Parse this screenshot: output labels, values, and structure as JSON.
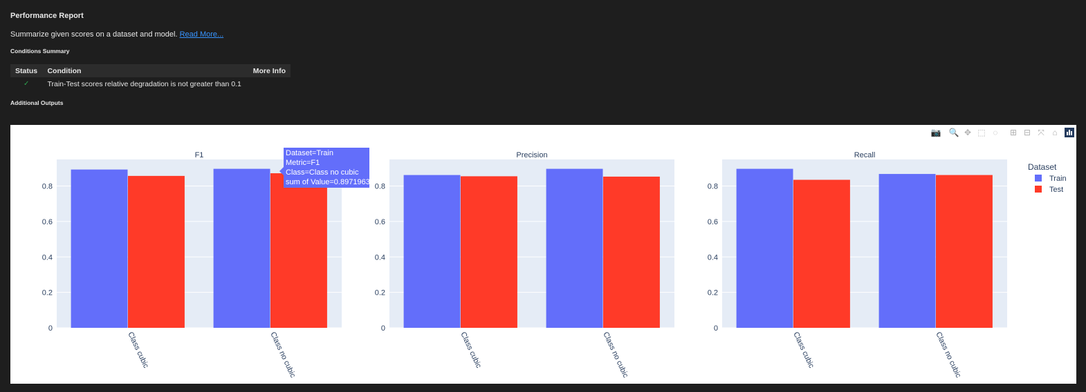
{
  "report": {
    "title": "Performance Report",
    "description": "Summarize given scores on a dataset and model.",
    "read_more": "Read More...",
    "conditions_summary": "Conditions Summary",
    "additional_outputs": "Additional Outputs"
  },
  "conditions_table": {
    "headers": {
      "status": "Status",
      "condition": "Condition",
      "more_info": "More Info"
    },
    "rows": [
      {
        "status": "✓",
        "condition": "Train-Test scores relative degradation is not greater than 0.1",
        "more_info": ""
      }
    ]
  },
  "modebar": {
    "icons": [
      "camera-icon",
      "zoom-icon",
      "pan-icon",
      "box-select-icon",
      "lasso-icon",
      "zoom-in-icon",
      "zoom-out-icon",
      "autoscale-icon",
      "reset-axes-icon",
      "plotly-logo-icon"
    ]
  },
  "tooltip": {
    "line1": "Dataset=Train",
    "line2": "Metric=F1",
    "line3": "Class=Class no cubic",
    "line4": "sum of Value=0.8971963"
  },
  "legend": {
    "title": "Dataset",
    "items": [
      {
        "name": "Train",
        "color": "#636efa"
      },
      {
        "name": "Test",
        "color": "#ef553b"
      }
    ]
  },
  "colors": {
    "train": "#636efa",
    "test": "#ff3a28",
    "plot_bg": "#e5ecf6",
    "grid": "#ffffff"
  },
  "chart_data": {
    "type": "bar",
    "categories": [
      "Class cubic",
      "Class no cubic"
    ],
    "yticks": [
      "0",
      "0.2",
      "0.4",
      "0.6",
      "0.8"
    ],
    "ylim": [
      0,
      0.95
    ],
    "subplots": [
      {
        "title": "F1",
        "series": [
          {
            "name": "Train",
            "values": [
              0.893,
              0.897
            ]
          },
          {
            "name": "Test",
            "values": [
              0.857,
              0.872
            ]
          }
        ]
      },
      {
        "title": "Precision",
        "series": [
          {
            "name": "Train",
            "values": [
              0.862,
              0.897
            ]
          },
          {
            "name": "Test",
            "values": [
              0.855,
              0.853
            ]
          }
        ]
      },
      {
        "title": "Recall",
        "series": [
          {
            "name": "Train",
            "values": [
              0.897,
              0.868
            ]
          },
          {
            "name": "Test",
            "values": [
              0.835,
              0.862
            ]
          }
        ]
      }
    ]
  }
}
